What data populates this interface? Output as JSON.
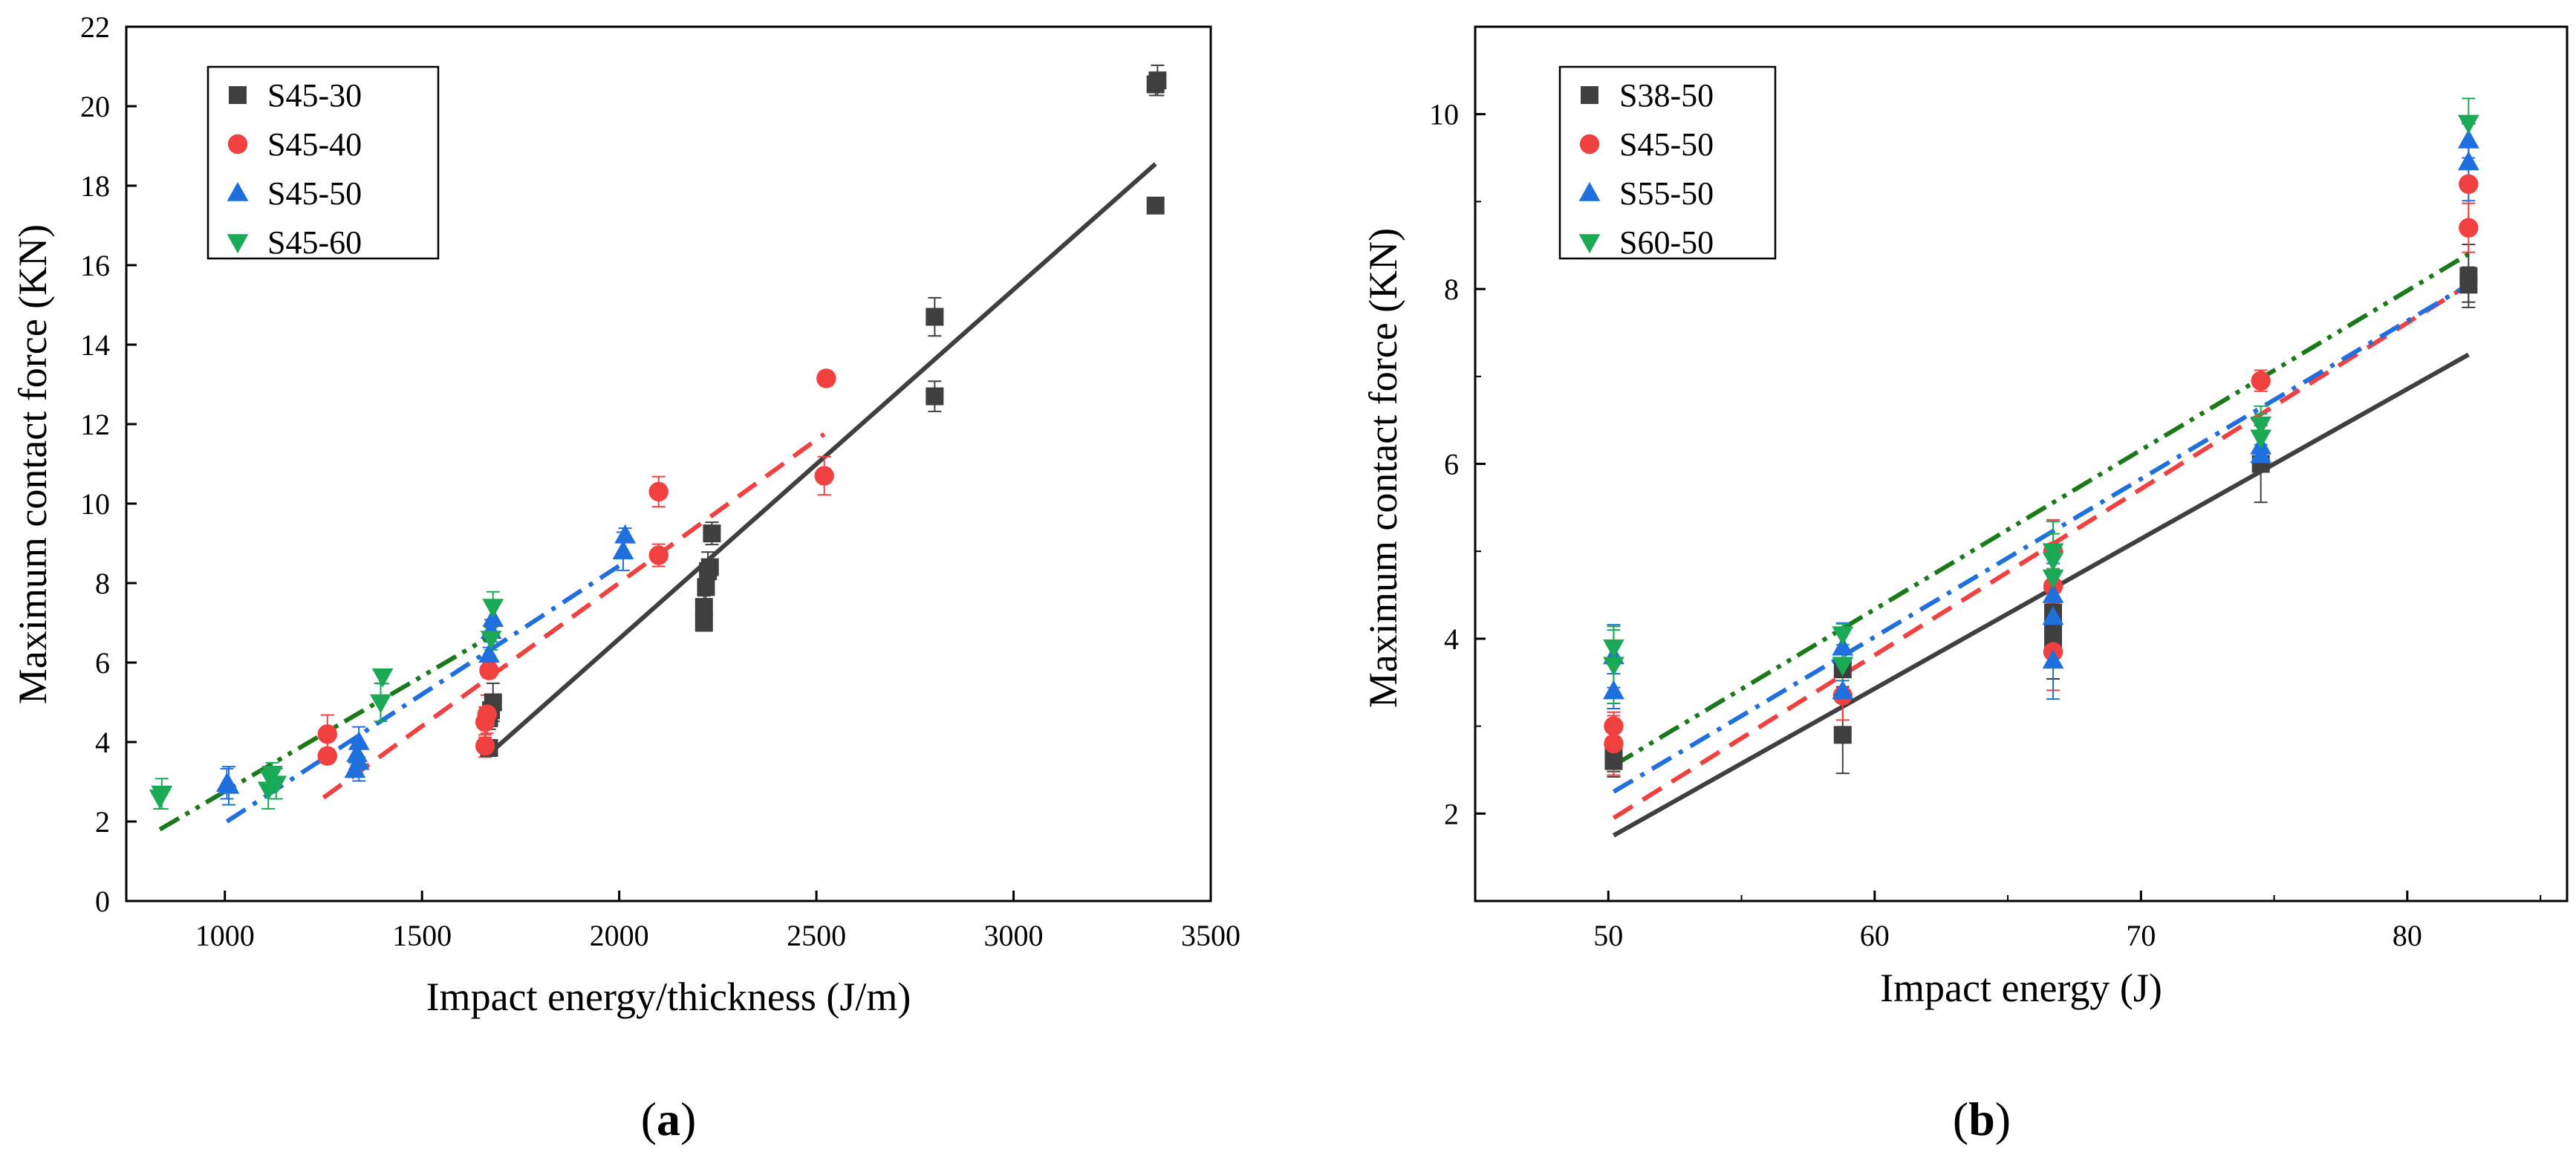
{
  "chart_data": [
    {
      "type": "scatter",
      "panel_label": "(a)",
      "panel_letter": "a",
      "xlabel": "Impact energy/thickness (J/m)",
      "ylabel": "Maximum contact force  (KN)",
      "xlim": [
        750,
        3500
      ],
      "ylim": [
        0,
        22
      ],
      "xticks": [
        1000,
        1500,
        2000,
        2500,
        3000,
        3500
      ],
      "yticks": [
        0,
        2,
        4,
        6,
        8,
        10,
        12,
        14,
        16,
        18,
        20,
        22
      ],
      "legend_position": "top-left",
      "series": [
        {
          "name": "S45-30",
          "marker": "square",
          "color": "#3f3f3f",
          "fit_style": "solid",
          "fit": [
            [
              1670,
              3.7
            ],
            [
              3360,
              18.55
            ]
          ],
          "points": [
            [
              1670,
              3.85
            ],
            [
              1670,
              4.6
            ],
            [
              1675,
              4.8
            ],
            [
              1680,
              5.0
            ],
            [
              2215,
              7.0
            ],
            [
              2215,
              7.4
            ],
            [
              2220,
              7.9
            ],
            [
              2225,
              8.3
            ],
            [
              2230,
              8.4
            ],
            [
              2235,
              9.25
            ],
            [
              2800,
              12.7
            ],
            [
              2800,
              14.7
            ],
            [
              3360,
              17.5
            ],
            [
              3360,
              20.55
            ],
            [
              3365,
              20.65
            ]
          ]
        },
        {
          "name": "S45-40",
          "marker": "circle",
          "color": "#f04040",
          "fit_style": "dash",
          "fit": [
            [
              1250,
              2.6
            ],
            [
              2520,
              11.75
            ]
          ],
          "points": [
            [
              1260,
              4.2
            ],
            [
              1260,
              3.65
            ],
            [
              1660,
              3.9
            ],
            [
              1660,
              4.5
            ],
            [
              1665,
              4.7
            ],
            [
              1670,
              5.8
            ],
            [
              2100,
              8.7
            ],
            [
              2100,
              10.3
            ],
            [
              2520,
              10.7
            ],
            [
              2525,
              13.15
            ]
          ]
        },
        {
          "name": "S45-50",
          "marker": "triangle-up",
          "color": "#1f6fdf",
          "fit_style": "dashdot",
          "fit": [
            [
              1005,
              2.0
            ],
            [
              2010,
              8.5
            ]
          ],
          "points": [
            [
              1005,
              2.95
            ],
            [
              1010,
              2.9
            ],
            [
              1330,
              3.3
            ],
            [
              1335,
              3.7
            ],
            [
              1340,
              4.0
            ],
            [
              1340,
              3.5
            ],
            [
              1670,
              6.2
            ],
            [
              1675,
              6.8
            ],
            [
              1680,
              7.1
            ],
            [
              2010,
              8.8
            ],
            [
              2015,
              9.2
            ]
          ]
        },
        {
          "name": "S45-60",
          "marker": "triangle-down",
          "color": "#1aaa55",
          "fit_style": "dashdotdot",
          "fit": [
            [
              835,
              1.8
            ],
            [
              1680,
              6.7
            ]
          ],
          "points": [
            [
              835,
              2.6
            ],
            [
              840,
              2.7
            ],
            [
              1110,
              2.8
            ],
            [
              1115,
              3.1
            ],
            [
              1120,
              3.2
            ],
            [
              1130,
              2.95
            ],
            [
              1395,
              5.0
            ],
            [
              1400,
              5.65
            ],
            [
              1675,
              6.6
            ],
            [
              1680,
              7.4
            ]
          ]
        }
      ]
    },
    {
      "type": "scatter",
      "panel_label": "(b)",
      "panel_letter": "b",
      "xlabel": "Impact energy  (J)",
      "ylabel": "Maximum contact force  (KN)",
      "xlim": [
        45,
        86
      ],
      "ylim": [
        1,
        11
      ],
      "xticks": [
        50,
        60,
        70,
        80
      ],
      "yticks": [
        2,
        4,
        6,
        8,
        10
      ],
      "legend_position": "top-left",
      "series": [
        {
          "name": "S38-50",
          "marker": "square",
          "color": "#3f3f3f",
          "fit_style": "solid",
          "fit": [
            [
              50.2,
              1.75
            ],
            [
              82.3,
              7.25
            ]
          ],
          "points": [
            [
              50.2,
              2.6
            ],
            [
              50.2,
              2.7
            ],
            [
              58.8,
              2.9
            ],
            [
              58.8,
              3.65
            ],
            [
              66.7,
              3.9
            ],
            [
              66.7,
              4.1
            ],
            [
              66.7,
              4.3
            ],
            [
              74.5,
              6.0
            ],
            [
              82.3,
              8.05
            ],
            [
              82.3,
              8.15
            ]
          ]
        },
        {
          "name": "S45-50",
          "marker": "circle",
          "color": "#f04040",
          "fit_style": "dash",
          "fit": [
            [
              50.2,
              1.95
            ],
            [
              82.3,
              8.05
            ]
          ],
          "points": [
            [
              50.2,
              2.8
            ],
            [
              50.2,
              3.0
            ],
            [
              58.8,
              3.35
            ],
            [
              66.7,
              3.85
            ],
            [
              66.7,
              4.6
            ],
            [
              66.7,
              5.0
            ],
            [
              74.5,
              6.95
            ],
            [
              82.3,
              8.7
            ],
            [
              82.3,
              9.2
            ]
          ]
        },
        {
          "name": "S55-50",
          "marker": "triangle-up",
          "color": "#1f6fdf",
          "fit_style": "dashdot",
          "fit": [
            [
              50.2,
              2.25
            ],
            [
              82.3,
              8.05
            ]
          ],
          "points": [
            [
              50.2,
              3.4
            ],
            [
              50.2,
              3.8
            ],
            [
              58.8,
              3.4
            ],
            [
              58.8,
              3.9
            ],
            [
              66.7,
              3.75
            ],
            [
              66.7,
              4.25
            ],
            [
              66.7,
              4.5
            ],
            [
              74.5,
              6.1
            ],
            [
              74.5,
              6.2
            ],
            [
              82.3,
              9.45
            ],
            [
              82.3,
              9.7
            ]
          ]
        },
        {
          "name": "S60-50",
          "marker": "triangle-down",
          "color": "#1aaa55",
          "fit_style": "dashdotdot",
          "fit": [
            [
              50.2,
              2.55
            ],
            [
              82.3,
              8.4
            ]
          ],
          "points": [
            [
              50.2,
              3.7
            ],
            [
              50.2,
              3.9
            ],
            [
              58.8,
              3.7
            ],
            [
              58.8,
              4.05
            ],
            [
              66.7,
              4.7
            ],
            [
              66.7,
              4.9
            ],
            [
              66.7,
              5.0
            ],
            [
              74.5,
              6.3
            ],
            [
              74.5,
              6.45
            ],
            [
              82.3,
              9.9
            ]
          ]
        }
      ]
    }
  ]
}
